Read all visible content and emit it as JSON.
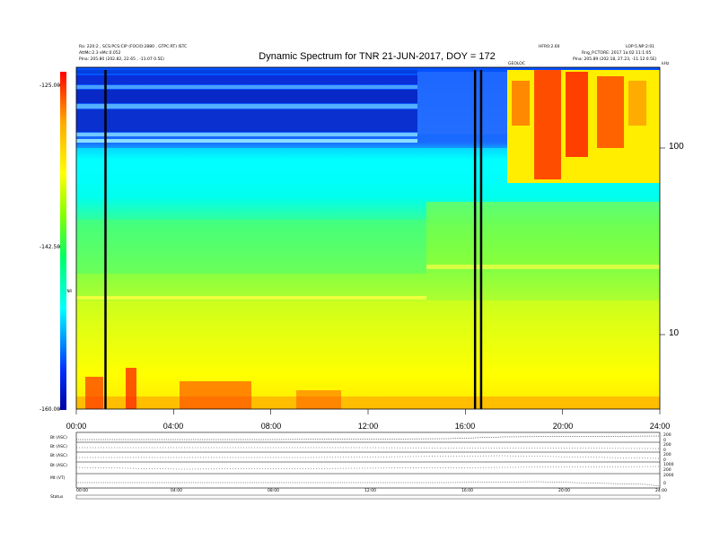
{
  "chart_data": {
    "type": "heatmap",
    "title": "Dynamic Spectrum for TNR 21-JUN-2017, DOY = 172",
    "header_left": [
      "Ra: 220:2 , SCS:PCS:CIP (FOCIO:2880 , GTPC:RT) ISTC",
      "AttMc:2.3 eMc:0.052",
      "Plna: 205.80 (202.82, 22.65 , -11.07 0.5E)"
    ],
    "header_right": [
      "HFR0:2.60",
      "LOP:5.NP:2:01",
      "Rng_P.CTORE: 2017 1a:02 11:1:05",
      "Plna: 205.89 (202.18, 27.23, -11.12 0.5E)"
    ],
    "marker_label": "GEOLOC",
    "x_tick_labels": [
      "00:00",
      "04:00",
      "08:00",
      "12:00",
      "16:00",
      "20:00",
      "24:00"
    ],
    "xlim_hours": [
      0,
      24
    ],
    "y_scale": "log",
    "y_tick_labels": [
      "100",
      "10"
    ],
    "y_corner_label": "kHz",
    "colorbar_tick_labels": [
      "-125.00",
      "-142.50",
      "-160.00"
    ],
    "colorbar_range": [
      -160,
      -125
    ],
    "colorbar_label": "TNR",
    "colormap": [
      "#0000a0",
      "#0033ff",
      "#00ffff",
      "#00ff66",
      "#88ff00",
      "#ffff00",
      "#ffaa00",
      "#ff2200",
      "#c00000"
    ],
    "vertical_lines_hours": [
      1.2,
      16.4,
      16.65
    ],
    "panels": [
      {
        "label": "Bt (ASC)",
        "right_scale": [
          "200",
          "0"
        ]
      },
      {
        "label": "Bt (ASC)",
        "right_scale": [
          "200",
          "0"
        ]
      },
      {
        "label": "Bt (ASC)",
        "right_scale": [
          "200",
          "0"
        ]
      },
      {
        "label": "Bt (ASC)",
        "right_scale": [
          "1000",
          "200"
        ]
      },
      {
        "label": "Mt (VT)",
        "right_scale": [
          "2000",
          "0"
        ]
      }
    ],
    "bottom_axis_labels": [
      "00:00",
      "04:00",
      "08:00",
      "12:00",
      "16:00",
      "20:00",
      "24:00"
    ],
    "footer_label": "Status"
  }
}
